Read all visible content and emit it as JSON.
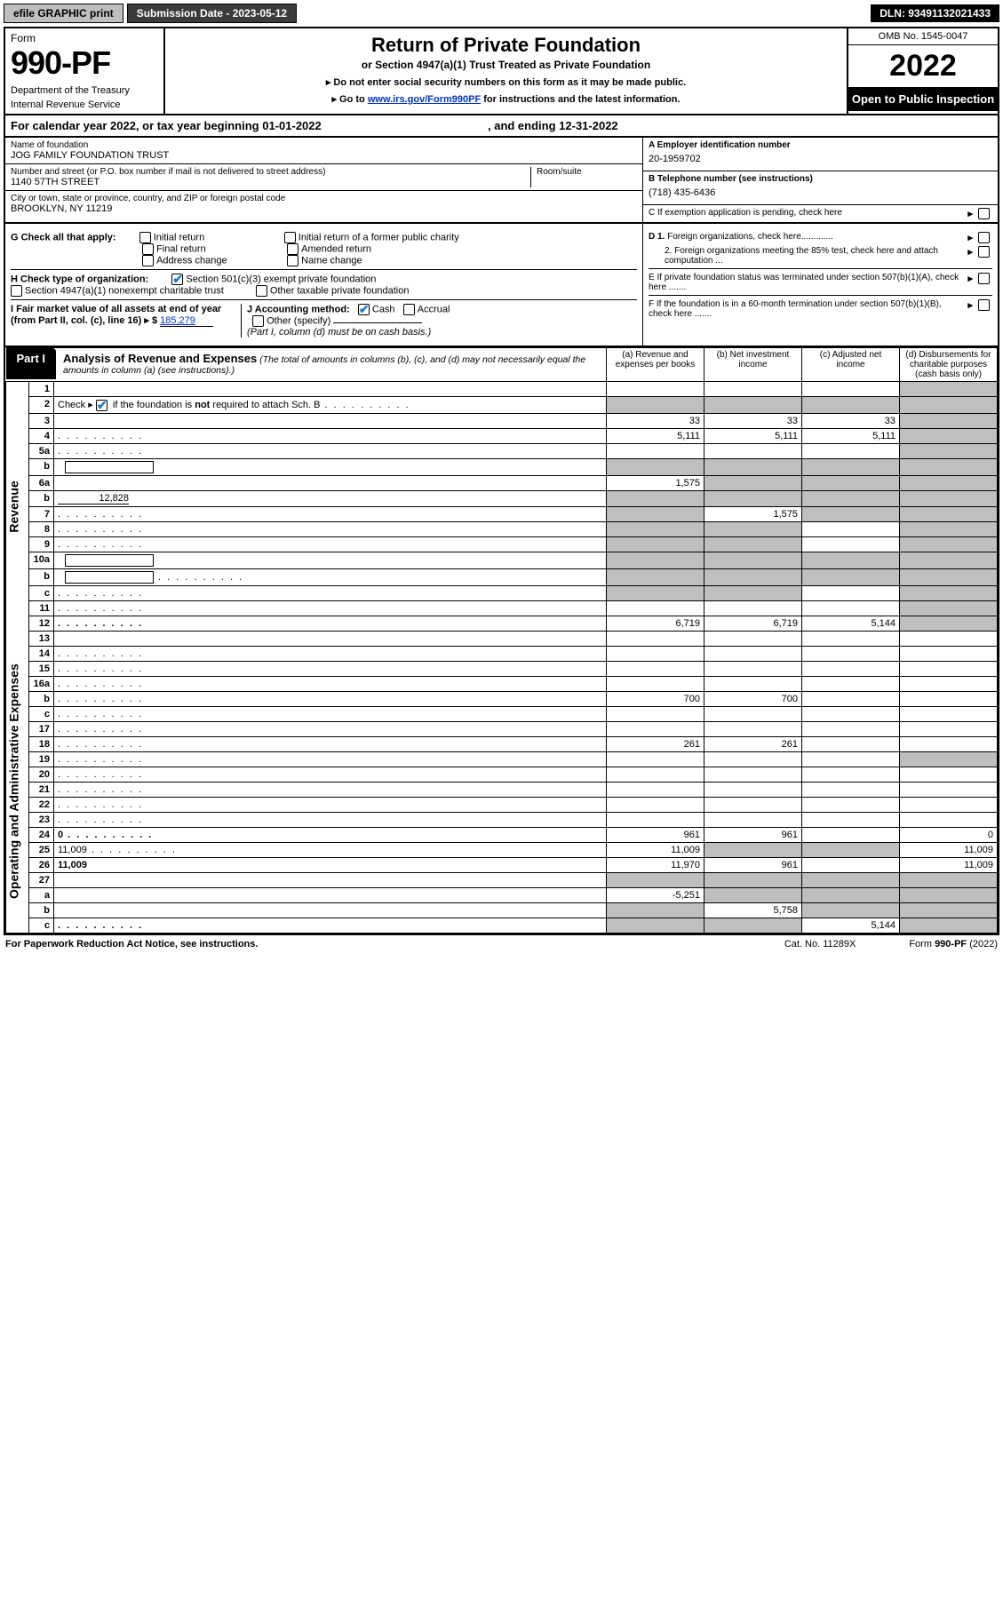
{
  "topbar": {
    "efile": "efile GRAPHIC print",
    "submission_label": "Submission Date - 2023-05-12",
    "dln": "DLN: 93491132021433"
  },
  "header": {
    "form_word": "Form",
    "form_number": "990-PF",
    "dept": "Department of the Treasury",
    "irs": "Internal Revenue Service",
    "title": "Return of Private Foundation",
    "subtitle": "or Section 4947(a)(1) Trust Treated as Private Foundation",
    "note1": "▸ Do not enter social security numbers on this form as it may be made public.",
    "note2_prefix": "▸ Go to ",
    "note2_link": "www.irs.gov/Form990PF",
    "note2_suffix": " for instructions and the latest information.",
    "omb": "OMB No. 1545-0047",
    "year": "2022",
    "open": "Open to Public Inspection"
  },
  "calendar": {
    "text_a": "For calendar year 2022, or tax year beginning ",
    "begin": "01-01-2022",
    "text_b": " , and ending ",
    "end": "12-31-2022"
  },
  "entity": {
    "name_label": "Name of foundation",
    "name": "JOG FAMILY FOUNDATION TRUST",
    "addr_label": "Number and street (or P.O. box number if mail is not delivered to street address)",
    "addr": "1140 57TH STREET",
    "room_label": "Room/suite",
    "city_label": "City or town, state or province, country, and ZIP or foreign postal code",
    "city": "BROOKLYN, NY  11219",
    "ein_label": "A Employer identification number",
    "ein": "20-1959702",
    "phone_label": "B Telephone number (see instructions)",
    "phone": "(718) 435-6436",
    "c_label": "C If exemption application is pending, check here"
  },
  "checks": {
    "g_label": "G Check all that apply:",
    "g_opts": [
      "Initial return",
      "Final return",
      "Address change",
      "Initial return of a former public charity",
      "Amended return",
      "Name change"
    ],
    "h_label": "H Check type of organization:",
    "h1": "Section 501(c)(3) exempt private foundation",
    "h2": "Section 4947(a)(1) nonexempt charitable trust",
    "h3": "Other taxable private foundation",
    "i_label": "I Fair market value of all assets at end of year (from Part II, col. (c), line 16) ▸ $",
    "i_value": "185,279",
    "j_label": "J Accounting method:",
    "j_cash": "Cash",
    "j_accrual": "Accrual",
    "j_other": "Other (specify)",
    "j_note": "(Part I, column (d) must be on cash basis.)",
    "d1": "D 1. Foreign organizations, check here.............",
    "d2": "2. Foreign organizations meeting the 85% test, check here and attach computation ...",
    "e": "E  If private foundation status was terminated under section 507(b)(1)(A), check here .......",
    "f": "F  If the foundation is in a 60-month termination under section 507(b)(1)(B), check here .......",
    "arrow": "▸"
  },
  "part1": {
    "tab": "Part I",
    "title": "Analysis of Revenue and Expenses",
    "note": " (The total of amounts in columns (b), (c), and (d) may not necessarily equal the amounts in column (a) (see instructions).)",
    "col_a": "(a)  Revenue and expenses per books",
    "col_b": "(b)  Net investment income",
    "col_c": "(c)  Adjusted net income",
    "col_d": "(d)  Disbursements for charitable purposes (cash basis only)",
    "side_rev": "Revenue",
    "side_exp": "Operating and Administrative Expenses"
  },
  "rows": [
    {
      "n": "1",
      "d": "",
      "a": "",
      "b": "",
      "c": "",
      "gd": true
    },
    {
      "n": "2",
      "d": "",
      "dots": true,
      "a": "",
      "b": "",
      "c": "",
      "ga": true,
      "gb": true,
      "gc": true,
      "gd": true,
      "checkbox": true
    },
    {
      "n": "3",
      "d": "",
      "a": "33",
      "b": "33",
      "c": "33",
      "gd": true
    },
    {
      "n": "4",
      "d": "",
      "dots": true,
      "a": "5,111",
      "b": "5,111",
      "c": "5,111",
      "gd": true
    },
    {
      "n": "5a",
      "d": "",
      "dots": true,
      "a": "",
      "b": "",
      "c": "",
      "gd": true
    },
    {
      "n": "b",
      "d": "",
      "inlinebox": true,
      "a": "",
      "b": "",
      "c": "",
      "ga": true,
      "gb": true,
      "gc": true,
      "gd": true
    },
    {
      "n": "6a",
      "d": "",
      "a": "1,575",
      "b": "",
      "c": "",
      "gb": true,
      "gc": true,
      "gd": true
    },
    {
      "n": "b",
      "d": "",
      "inlineval": "12,828",
      "a": "",
      "b": "",
      "c": "",
      "ga": true,
      "gb": true,
      "gc": true,
      "gd": true
    },
    {
      "n": "7",
      "d": "",
      "dots": true,
      "a": "",
      "b": "1,575",
      "c": "",
      "ga": true,
      "gc": true,
      "gd": true
    },
    {
      "n": "8",
      "d": "",
      "dots": true,
      "a": "",
      "b": "",
      "c": "",
      "ga": true,
      "gb": true,
      "gd": true
    },
    {
      "n": "9",
      "d": "",
      "dots": true,
      "a": "",
      "b": "",
      "c": "",
      "ga": true,
      "gb": true,
      "gd": true
    },
    {
      "n": "10a",
      "d": "",
      "inlinebox": true,
      "a": "",
      "b": "",
      "c": "",
      "ga": true,
      "gb": true,
      "gc": true,
      "gd": true
    },
    {
      "n": "b",
      "d": "",
      "dots": true,
      "inlinebox": true,
      "a": "",
      "b": "",
      "c": "",
      "ga": true,
      "gb": true,
      "gc": true,
      "gd": true
    },
    {
      "n": "c",
      "d": "",
      "dots": true,
      "a": "",
      "b": "",
      "c": "",
      "ga": true,
      "gb": true,
      "gd": true
    },
    {
      "n": "11",
      "d": "",
      "dots": true,
      "a": "",
      "b": "",
      "c": "",
      "gd": true
    },
    {
      "n": "12",
      "d": "",
      "dots": true,
      "bold": true,
      "a": "6,719",
      "b": "6,719",
      "c": "5,144",
      "gd": true
    },
    {
      "n": "13",
      "d": "",
      "a": "",
      "b": "",
      "c": ""
    },
    {
      "n": "14",
      "d": "",
      "dots": true,
      "a": "",
      "b": "",
      "c": ""
    },
    {
      "n": "15",
      "d": "",
      "dots": true,
      "a": "",
      "b": "",
      "c": ""
    },
    {
      "n": "16a",
      "d": "",
      "dots": true,
      "a": "",
      "b": "",
      "c": ""
    },
    {
      "n": "b",
      "d": "",
      "dots": true,
      "a": "700",
      "b": "700",
      "c": ""
    },
    {
      "n": "c",
      "d": "",
      "dots": true,
      "a": "",
      "b": "",
      "c": ""
    },
    {
      "n": "17",
      "d": "",
      "dots": true,
      "a": "",
      "b": "",
      "c": ""
    },
    {
      "n": "18",
      "d": "",
      "dots": true,
      "a": "261",
      "b": "261",
      "c": ""
    },
    {
      "n": "19",
      "d": "",
      "dots": true,
      "a": "",
      "b": "",
      "c": "",
      "gd": true
    },
    {
      "n": "20",
      "d": "",
      "dots": true,
      "a": "",
      "b": "",
      "c": ""
    },
    {
      "n": "21",
      "d": "",
      "dots": true,
      "a": "",
      "b": "",
      "c": ""
    },
    {
      "n": "22",
      "d": "",
      "dots": true,
      "a": "",
      "b": "",
      "c": ""
    },
    {
      "n": "23",
      "d": "",
      "dots": true,
      "a": "",
      "b": "",
      "c": ""
    },
    {
      "n": "24",
      "d": "0",
      "dots": true,
      "bold": true,
      "a": "961",
      "b": "961",
      "c": ""
    },
    {
      "n": "25",
      "d": "11,009",
      "dots": true,
      "a": "11,009",
      "b": "",
      "c": "",
      "gb": true,
      "gc": true
    },
    {
      "n": "26",
      "d": "11,009",
      "bold": true,
      "a": "11,970",
      "b": "961",
      "c": ""
    },
    {
      "n": "27",
      "d": "",
      "a": "",
      "b": "",
      "c": "",
      "ga": true,
      "gb": true,
      "gc": true,
      "gd": true
    },
    {
      "n": "a",
      "d": "",
      "bold": true,
      "a": "-5,251",
      "b": "",
      "c": "",
      "gb": true,
      "gc": true,
      "gd": true
    },
    {
      "n": "b",
      "d": "",
      "bold": true,
      "a": "",
      "b": "5,758",
      "c": "",
      "ga": true,
      "gc": true,
      "gd": true
    },
    {
      "n": "c",
      "d": "",
      "bold": true,
      "dots": true,
      "a": "",
      "b": "",
      "c": "5,144",
      "ga": true,
      "gb": true,
      "gd": true
    }
  ],
  "footer": {
    "left": "For Paperwork Reduction Act Notice, see instructions.",
    "mid": "Cat. No. 11289X",
    "right": "Form 990-PF (2022)"
  },
  "colors": {
    "grey": "#bfbfbf",
    "black": "#000000",
    "link": "#0033cc",
    "check": "#1976d2"
  }
}
